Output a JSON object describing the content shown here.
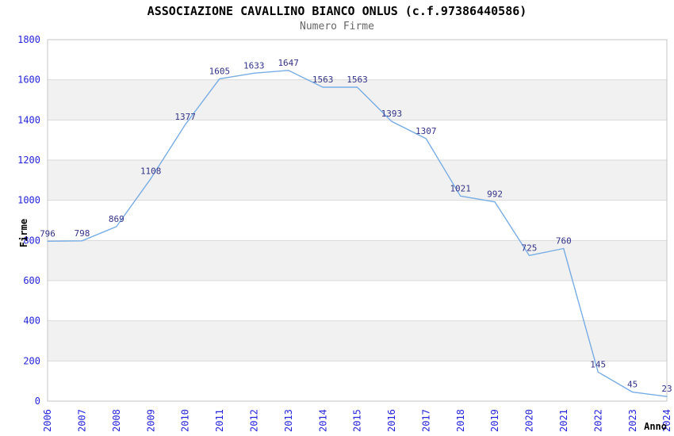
{
  "header": {
    "title": "ASSOCIAZIONE CAVALLINO BIANCO ONLUS (c.f.97386440586)",
    "subtitle": "Numero Firme"
  },
  "chart_data": {
    "type": "line",
    "title": "ASSOCIAZIONE CAVALLINO BIANCO ONLUS (c.f.97386440586)",
    "subtitle": "Numero Firme",
    "xlabel": "Anno",
    "ylabel": "Firme",
    "x": [
      2006,
      2007,
      2008,
      2009,
      2010,
      2011,
      2012,
      2013,
      2014,
      2015,
      2016,
      2017,
      2018,
      2019,
      2020,
      2021,
      2022,
      2023,
      2024
    ],
    "values": [
      796,
      798,
      869,
      1108,
      1377,
      1605,
      1633,
      1647,
      1563,
      1563,
      1393,
      1307,
      1021,
      992,
      725,
      760,
      145,
      45,
      23
    ],
    "ylim": [
      0,
      1800
    ],
    "ytick_step": 200,
    "legend": "none",
    "grid": "horizontal gridlines with alternating gray bands every 200",
    "colors": {
      "line": "#78ade4",
      "data_label": "#333388",
      "tick_label": "#2424d8",
      "axis_title": "#000000",
      "title": "#000000",
      "subtitle": "#666666",
      "band": "#f1f1f1",
      "grid": "#d9d9d9",
      "border": "#c6c6c6",
      "background": "#ffffff"
    }
  }
}
